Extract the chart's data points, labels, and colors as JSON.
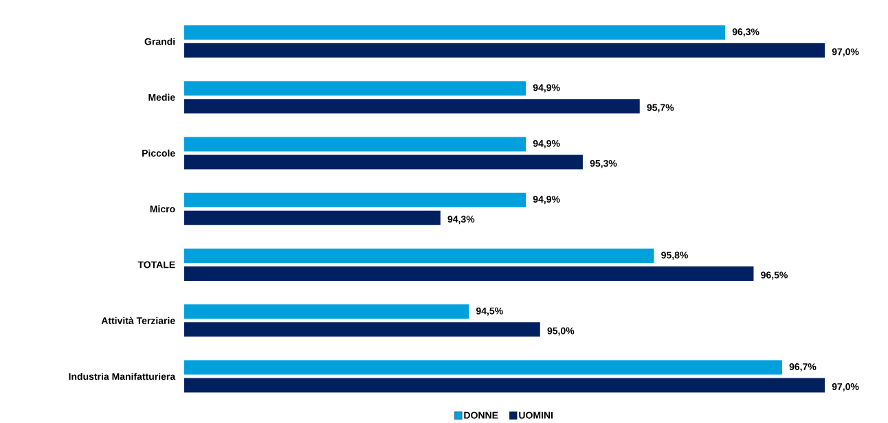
{
  "chart_data": {
    "type": "bar",
    "orientation": "horizontal",
    "categories": [
      "Grandi",
      "Medie",
      "Piccole",
      "Micro",
      "TOTALE",
      "Attività Terziarie",
      "Industria Manifatturiera"
    ],
    "xlim": [
      92.5,
      97.0
    ],
    "series": [
      {
        "name": "DONNE",
        "color": "#00a0dc",
        "values": [
          96.3,
          94.9,
          94.9,
          94.9,
          95.8,
          94.5,
          96.7
        ],
        "value_labels": [
          "96,3%",
          "94,9%",
          "94,9%",
          "94,9%",
          "95,8%",
          "94,5%",
          "96,7%"
        ]
      },
      {
        "name": "UOMINI",
        "color": "#002060",
        "values": [
          97.0,
          95.7,
          95.3,
          94.3,
          96.5,
          95.0,
          97.0
        ],
        "value_labels": [
          "97,0%",
          "95,7%",
          "95,3%",
          "94,3%",
          "96,5%",
          "95,0%",
          "97,0%"
        ]
      }
    ],
    "legend": "bottom"
  }
}
